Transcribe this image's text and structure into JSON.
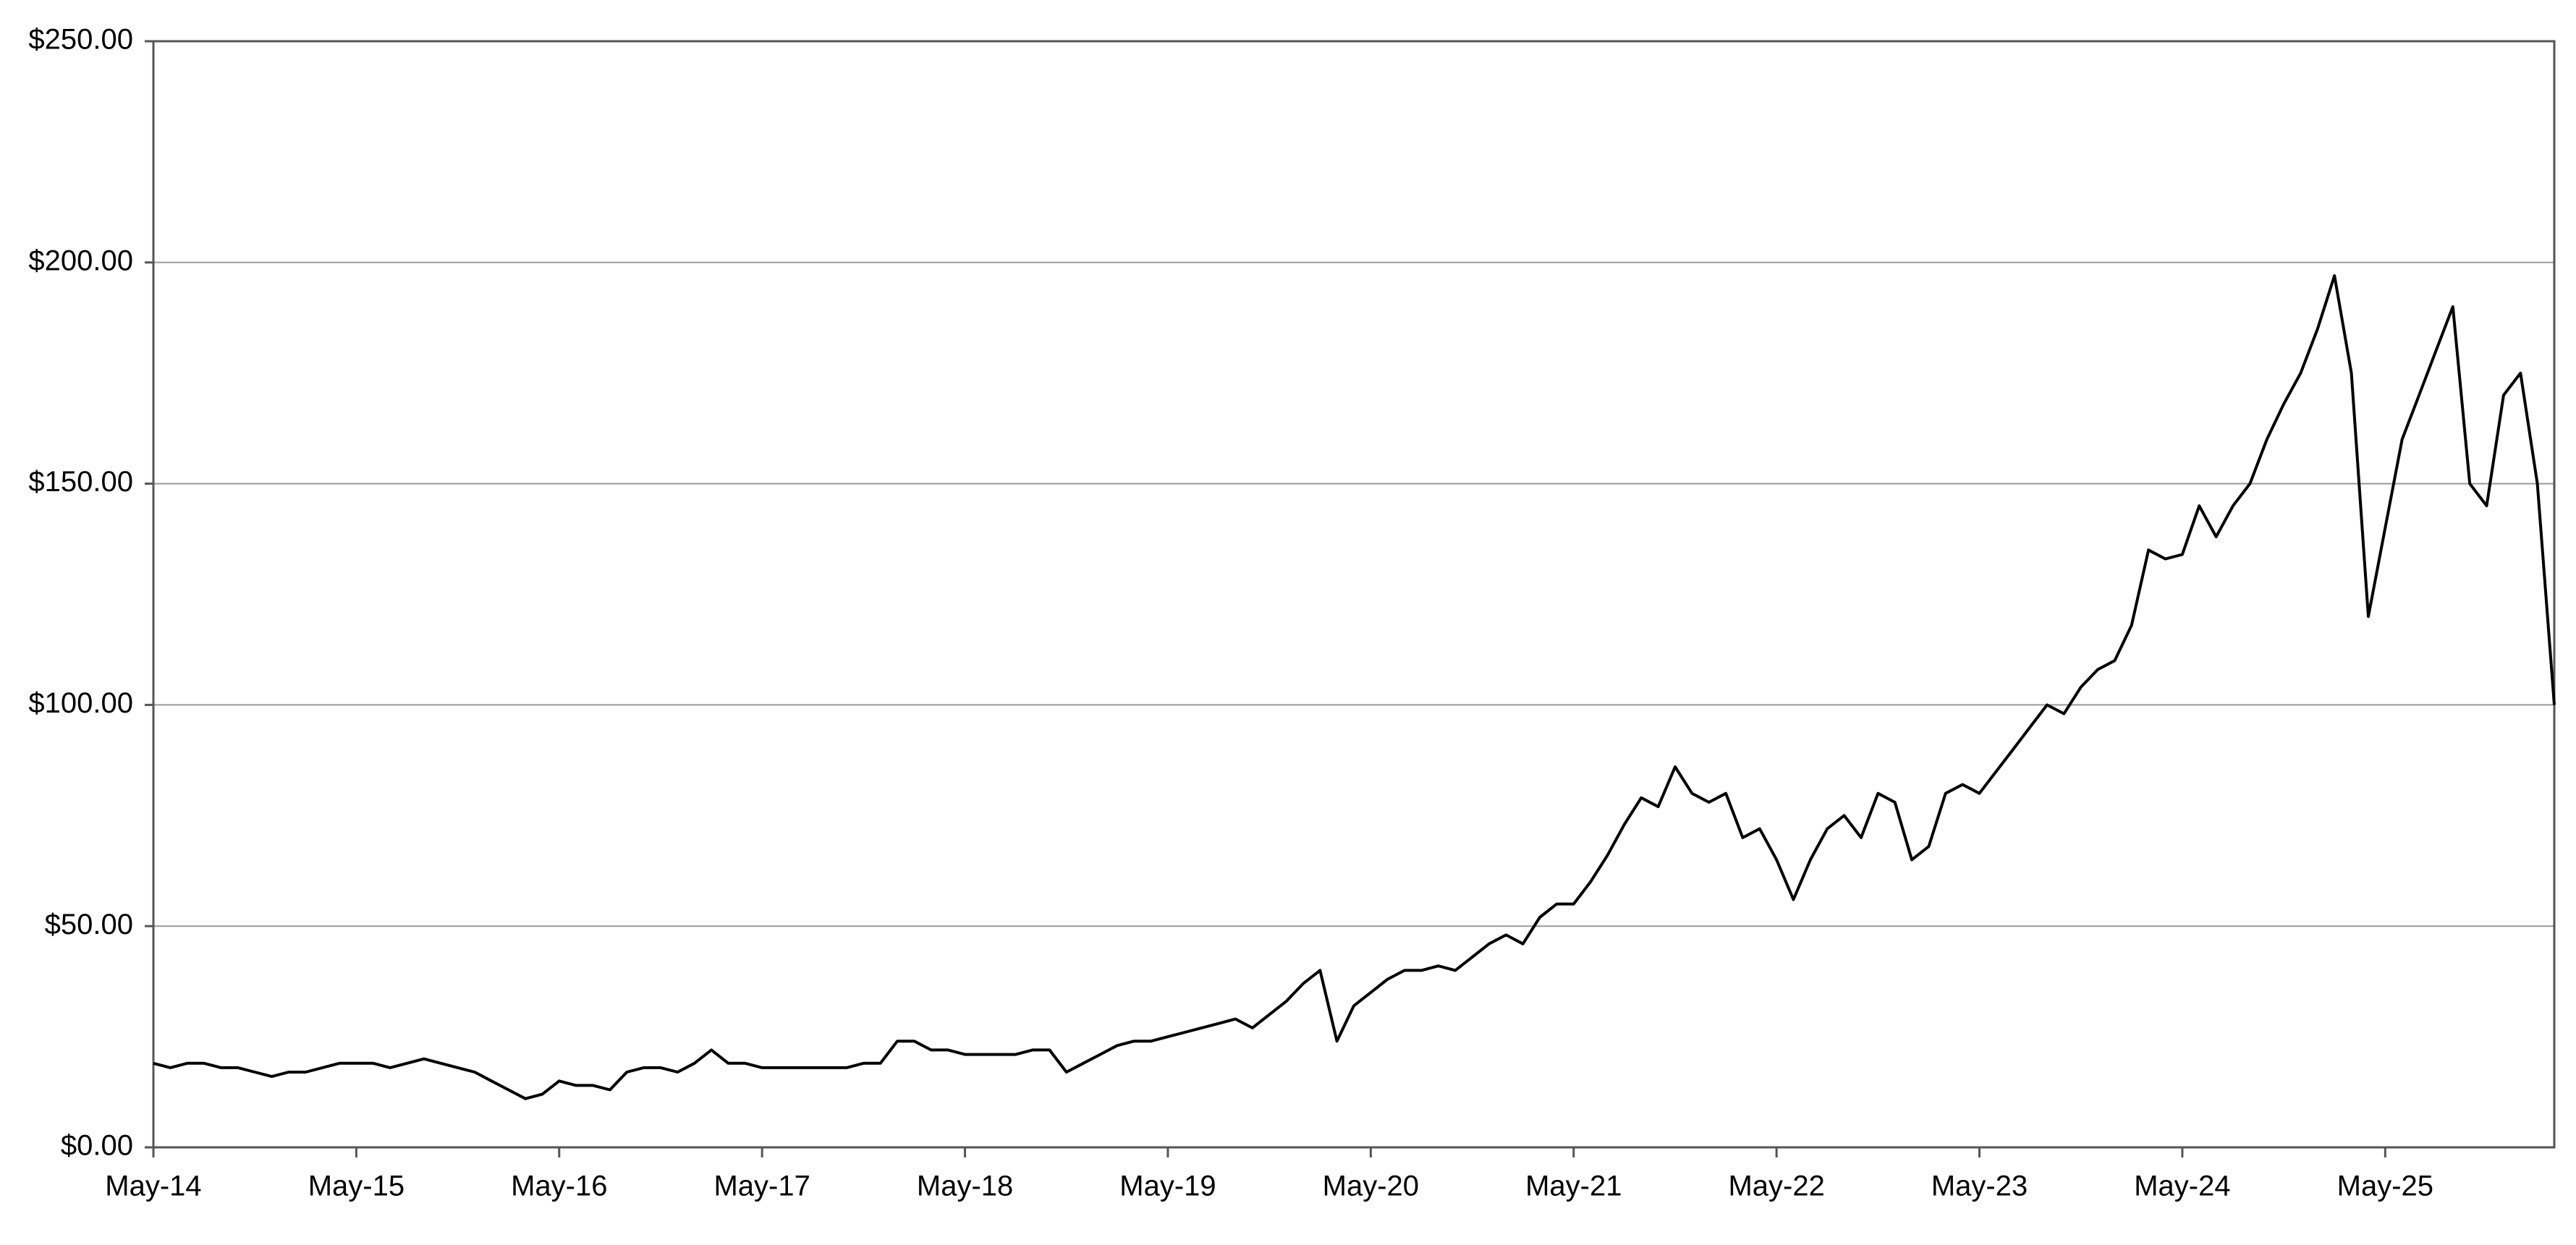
{
  "chart_data": {
    "type": "line",
    "x": [
      "2014-05",
      "2014-06",
      "2014-07",
      "2014-08",
      "2014-09",
      "2014-10",
      "2014-11",
      "2014-12",
      "2015-01",
      "2015-02",
      "2015-03",
      "2015-04",
      "2015-05",
      "2015-06",
      "2015-07",
      "2015-08",
      "2015-09",
      "2015-10",
      "2015-11",
      "2015-12",
      "2016-01",
      "2016-02",
      "2016-03",
      "2016-04",
      "2016-05",
      "2016-06",
      "2016-07",
      "2016-08",
      "2016-09",
      "2016-10",
      "2016-11",
      "2016-12",
      "2017-01",
      "2017-02",
      "2017-03",
      "2017-04",
      "2017-05",
      "2017-06",
      "2017-07",
      "2017-08",
      "2017-09",
      "2017-10",
      "2017-11",
      "2017-12",
      "2018-01",
      "2018-02",
      "2018-03",
      "2018-04",
      "2018-05",
      "2018-06",
      "2018-07",
      "2018-08",
      "2018-09",
      "2018-10",
      "2018-11",
      "2018-12",
      "2019-01",
      "2019-02",
      "2019-03",
      "2019-04",
      "2019-05",
      "2019-06",
      "2019-07",
      "2019-08",
      "2019-09",
      "2019-10",
      "2019-11",
      "2019-12",
      "2020-01",
      "2020-02",
      "2020-03",
      "2020-04",
      "2020-05",
      "2020-06",
      "2020-07",
      "2020-08",
      "2020-09",
      "2020-10",
      "2020-11",
      "2020-12",
      "2021-01",
      "2021-02",
      "2021-03",
      "2021-04",
      "2021-05",
      "2021-06",
      "2021-07",
      "2021-08",
      "2021-09",
      "2021-10",
      "2021-11",
      "2021-12",
      "2022-01",
      "2022-02",
      "2022-03",
      "2022-04",
      "2022-05",
      "2022-06",
      "2022-07",
      "2022-08",
      "2022-09",
      "2022-10",
      "2022-11",
      "2022-12",
      "2023-01",
      "2023-02",
      "2023-03",
      "2023-04",
      "2023-05",
      "2023-06",
      "2023-07",
      "2023-08",
      "2023-09",
      "2023-10",
      "2023-11",
      "2023-12",
      "2024-01",
      "2024-02",
      "2024-03",
      "2024-04",
      "2024-05",
      "2024-06",
      "2024-07",
      "2024-08",
      "2024-09",
      "2024-10",
      "2024-11",
      "2024-12",
      "2025-01",
      "2025-02",
      "2025-03",
      "2025-04",
      "2025-05",
      "2025-06",
      "2025-07",
      "2025-08",
      "2025-09",
      "2025-10",
      "2025-11",
      "2025-12",
      "2026-01",
      "2026-02",
      "2026-03"
    ],
    "values": [
      19,
      18,
      19,
      19,
      18,
      18,
      17,
      16,
      17,
      17,
      18,
      19,
      19,
      19,
      18,
      19,
      20,
      19,
      18,
      17,
      15,
      13,
      11,
      12,
      15,
      14,
      14,
      13,
      17,
      18,
      18,
      17,
      19,
      22,
      19,
      19,
      18,
      18,
      18,
      18,
      18,
      18,
      19,
      19,
      24,
      24,
      22,
      22,
      21,
      21,
      21,
      21,
      22,
      22,
      17,
      19,
      21,
      23,
      24,
      24,
      25,
      26,
      27,
      28,
      29,
      27,
      30,
      33,
      37,
      40,
      24,
      32,
      35,
      38,
      40,
      40,
      41,
      40,
      43,
      46,
      48,
      46,
      52,
      55,
      55,
      60,
      66,
      73,
      79,
      77,
      86,
      80,
      78,
      80,
      70,
      72,
      65,
      56,
      65,
      72,
      75,
      70,
      80,
      78,
      65,
      68,
      80,
      82,
      80,
      85,
      90,
      95,
      100,
      98,
      104,
      108,
      110,
      118,
      135,
      133,
      134,
      145,
      138,
      145,
      150,
      160,
      168,
      175,
      185,
      197,
      175,
      120,
      140,
      160,
      170,
      180,
      190,
      150,
      145,
      170,
      175,
      150,
      100
    ],
    "color": "#000000",
    "xlim": [
      "2014-05",
      "2026-03"
    ],
    "xticks": [
      {
        "value": "2014-05",
        "label": "May-14"
      },
      {
        "value": "2015-05",
        "label": "May-15"
      },
      {
        "value": "2016-05",
        "label": "May-16"
      },
      {
        "value": "2017-05",
        "label": "May-17"
      },
      {
        "value": "2018-05",
        "label": "May-18"
      },
      {
        "value": "2019-05",
        "label": "May-19"
      },
      {
        "value": "2020-05",
        "label": "May-20"
      },
      {
        "value": "2021-05",
        "label": "May-21"
      },
      {
        "value": "2022-05",
        "label": "May-22"
      },
      {
        "value": "2023-05",
        "label": "May-23"
      },
      {
        "value": "2024-05",
        "label": "May-24"
      },
      {
        "value": "2025-05",
        "label": "May-25"
      }
    ],
    "ylim": [
      0,
      250
    ],
    "yticks": [
      {
        "value": 0,
        "label": "$0.00"
      },
      {
        "value": 50,
        "label": "$50.00"
      },
      {
        "value": 100,
        "label": "$100.00"
      },
      {
        "value": 150,
        "label": "$150.00"
      },
      {
        "value": 200,
        "label": "$200.00"
      },
      {
        "value": 250,
        "label": "$250.00"
      }
    ],
    "grid": true
  }
}
